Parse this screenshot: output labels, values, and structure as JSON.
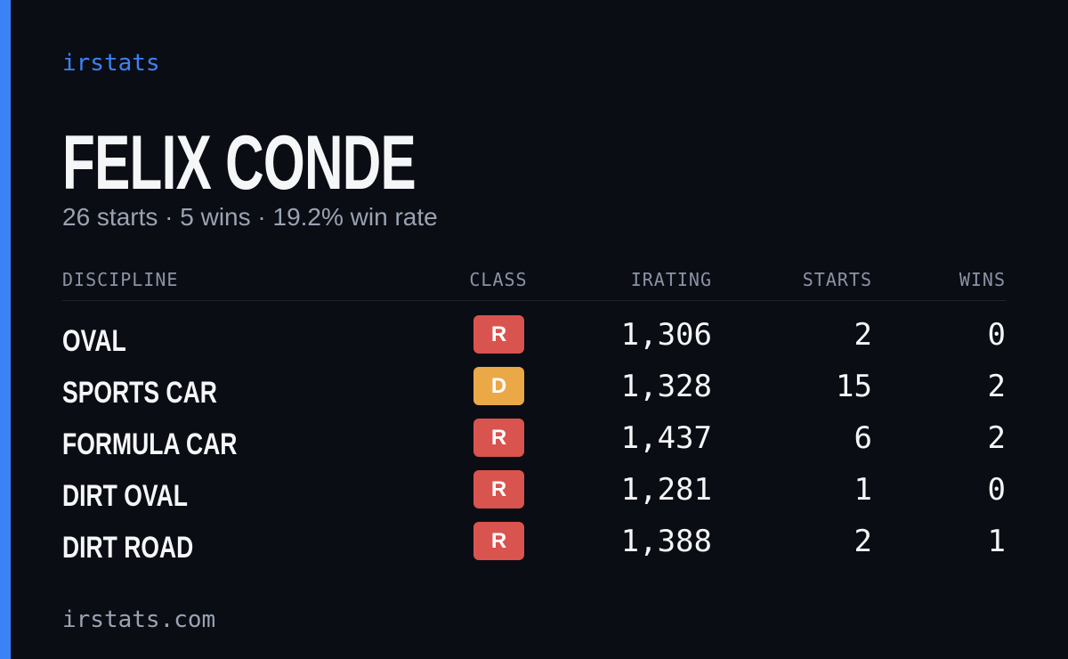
{
  "brand": "irstats",
  "name": "FELIX CONDE",
  "subtitle": "26 starts · 5 wins · 19.2% win rate",
  "table": {
    "headers": [
      "DISCIPLINE",
      "CLASS",
      "IRATING",
      "STARTS",
      "WINS"
    ],
    "rows": [
      {
        "discipline": "OVAL",
        "class": "R",
        "class_color": "#d9534f",
        "irating": "1,306",
        "starts": "2",
        "wins": "0"
      },
      {
        "discipline": "SPORTS CAR",
        "class": "D",
        "class_color": "#eaa847",
        "irating": "1,328",
        "starts": "15",
        "wins": "2"
      },
      {
        "discipline": "FORMULA CAR",
        "class": "R",
        "class_color": "#d9534f",
        "irating": "1,437",
        "starts": "6",
        "wins": "2"
      },
      {
        "discipline": "DIRT OVAL",
        "class": "R",
        "class_color": "#d9534f",
        "irating": "1,281",
        "starts": "1",
        "wins": "0"
      },
      {
        "discipline": "DIRT ROAD",
        "class": "R",
        "class_color": "#d9534f",
        "irating": "1,388",
        "starts": "2",
        "wins": "1"
      }
    ]
  },
  "footer": "irstats.com"
}
